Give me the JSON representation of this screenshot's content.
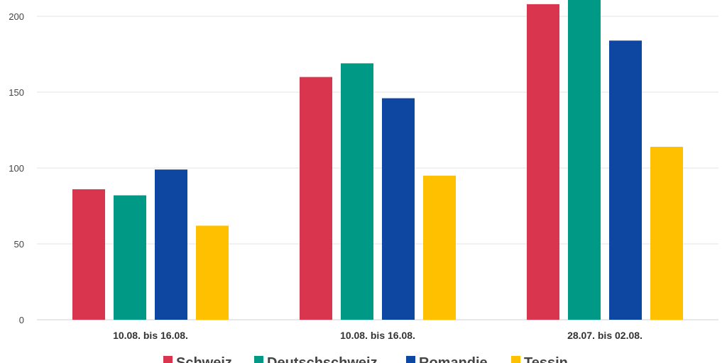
{
  "chart_data": {
    "type": "bar",
    "title": "",
    "xlabel": "",
    "ylabel": "",
    "categories": [
      "10.08. bis 16.08.",
      "10.08. bis 16.08.",
      "28.07. bis 02.08."
    ],
    "ylim": [
      0,
      200
    ],
    "yticks": [
      0,
      50,
      100,
      150,
      200
    ],
    "grid": true,
    "legend_position": "bottom",
    "series": [
      {
        "name": "Schweiz",
        "color": "#d9354e",
        "values": [
          86,
          160,
          208
        ]
      },
      {
        "name": "Deutschschweiz",
        "color": "#009985",
        "values": [
          82,
          169,
          213
        ]
      },
      {
        "name": "Romandie",
        "color": "#0d47a1",
        "values": [
          99,
          146,
          184
        ]
      },
      {
        "name": "Tessin",
        "color": "#ffc000",
        "values": [
          62,
          95,
          114
        ]
      }
    ]
  }
}
